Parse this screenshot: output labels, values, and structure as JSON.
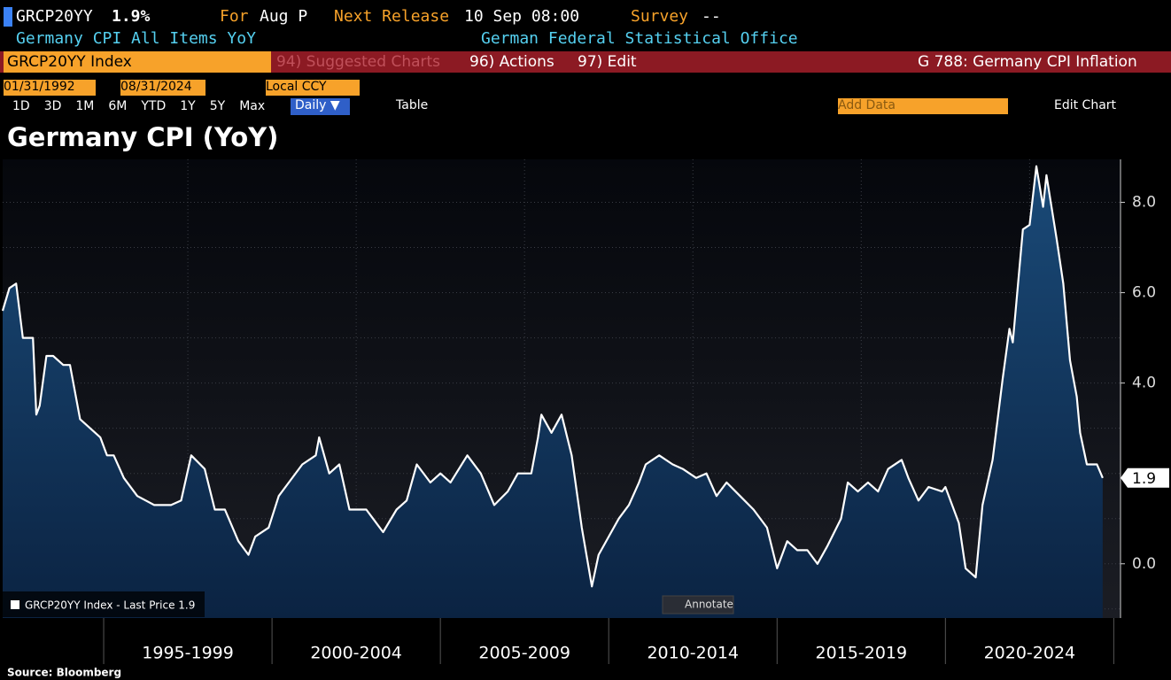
{
  "header": {
    "ticker": "GRCP20YY",
    "last": "1.9%",
    "for_label": "For",
    "for_value": "Aug P",
    "release_label": "Next Release",
    "release_value": "10 Sep 08:00",
    "survey_label": "Survey",
    "survey_value": "--",
    "description": "Germany CPI All Items YoY",
    "source_org": "German Federal Statistical Office"
  },
  "toolbar": {
    "security": "GRCP20YY Index",
    "suggested": "94) Suggested Charts",
    "actions": "96) Actions",
    "edit": "97) Edit",
    "chart_id": "G 788: Germany CPI Inflation"
  },
  "controls": {
    "start_date": "01/31/1992",
    "end_date": "08/31/2024",
    "currency": "Local CCY",
    "periods": [
      "1D",
      "3D",
      "1M",
      "6M",
      "YTD",
      "1Y",
      "5Y",
      "Max"
    ],
    "frequency": "Daily ▼",
    "table": "Table",
    "add_data": "Add Data",
    "edit_chart": "Edit Chart"
  },
  "chart_data": {
    "type": "line",
    "title": "Germany CPI (YoY)",
    "annotate": "Annotate",
    "source": "Source: Bloomberg",
    "last_price": 1.9,
    "x": [
      1992.0,
      1992.2,
      1992.4,
      1992.6,
      1992.9,
      1993.0,
      1993.1,
      1993.3,
      1993.5,
      1993.8,
      1994.0,
      1994.3,
      1994.6,
      1994.9,
      1995.1,
      1995.3,
      1995.6,
      1996.0,
      1996.5,
      1997.0,
      1997.3,
      1997.6,
      1998.0,
      1998.3,
      1998.6,
      1999.0,
      1999.3,
      1999.5,
      1999.9,
      2000.2,
      2000.5,
      2000.9,
      2001.3,
      2001.4,
      2001.7,
      2002.0,
      2002.3,
      2002.8,
      2003.0,
      2003.3,
      2003.7,
      2004.0,
      2004.3,
      2004.7,
      2005.0,
      2005.3,
      2005.8,
      2006.2,
      2006.6,
      2007.0,
      2007.3,
      2007.7,
      2007.9,
      2008.0,
      2008.3,
      2008.6,
      2008.9,
      2009.2,
      2009.5,
      2009.7,
      2010.0,
      2010.3,
      2010.6,
      2010.9,
      2011.1,
      2011.5,
      2011.9,
      2012.2,
      2012.6,
      2012.9,
      2013.2,
      2013.5,
      2013.9,
      2014.3,
      2014.7,
      2015.0,
      2015.3,
      2015.6,
      2015.9,
      2016.2,
      2016.5,
      2016.9,
      2017.1,
      2017.4,
      2017.7,
      2018.0,
      2018.3,
      2018.7,
      2018.9,
      2019.2,
      2019.5,
      2019.9,
      2020.0,
      2020.2,
      2020.4,
      2020.6,
      2020.9,
      2021.1,
      2021.4,
      2021.7,
      2021.9,
      2022.0,
      2022.3,
      2022.5,
      2022.7,
      2022.9,
      2023.0,
      2023.3,
      2023.5,
      2023.7,
      2023.9,
      2024.0,
      2024.2,
      2024.5,
      2024.67
    ],
    "series": [
      {
        "name": "GRCP20YY Index - Last Price 1.9",
        "color": "#ffffff",
        "values": [
          5.6,
          6.1,
          6.2,
          5.0,
          5.0,
          3.3,
          3.5,
          4.6,
          4.6,
          4.4,
          4.4,
          3.2,
          3.0,
          2.8,
          2.4,
          2.4,
          1.9,
          1.5,
          1.3,
          1.3,
          1.4,
          2.4,
          2.1,
          1.2,
          1.2,
          0.5,
          0.2,
          0.6,
          0.8,
          1.5,
          1.8,
          2.2,
          2.4,
          2.8,
          2.0,
          2.2,
          1.2,
          1.2,
          1.0,
          0.7,
          1.2,
          1.4,
          2.2,
          1.8,
          2.0,
          1.8,
          2.4,
          2.0,
          1.3,
          1.6,
          2.0,
          2.0,
          2.8,
          3.3,
          2.9,
          3.3,
          2.4,
          0.8,
          -0.5,
          0.2,
          0.6,
          1.0,
          1.3,
          1.8,
          2.2,
          2.4,
          2.2,
          2.1,
          1.9,
          2.0,
          1.5,
          1.8,
          1.5,
          1.2,
          0.8,
          -0.1,
          0.5,
          0.3,
          0.3,
          0.0,
          0.4,
          1.0,
          1.8,
          1.6,
          1.8,
          1.6,
          2.1,
          2.3,
          1.9,
          1.4,
          1.7,
          1.6,
          1.7,
          1.3,
          0.9,
          -0.1,
          -0.3,
          1.3,
          2.3,
          4.1,
          5.2,
          4.9,
          7.4,
          7.5,
          8.8,
          7.9,
          8.6,
          7.2,
          6.2,
          4.5,
          3.7,
          2.9,
          2.2,
          2.2,
          1.9
        ]
      }
    ],
    "xlim": [
      1992,
      2025.2
    ],
    "xticks": [
      {
        "value": 1997.5,
        "label": "1995-1999"
      },
      {
        "value": 2002.5,
        "label": "2000-2004"
      },
      {
        "value": 2007.5,
        "label": "2005-2009"
      },
      {
        "value": 2012.5,
        "label": "2010-2014"
      },
      {
        "value": 2017.5,
        "label": "2015-2019"
      },
      {
        "value": 2022.5,
        "label": "2020-2024"
      }
    ],
    "ylim": [
      -1.2,
      8.95
    ],
    "yticks": [
      {
        "value": 0,
        "label": "0.0"
      },
      {
        "value": 4,
        "label": "4.0"
      },
      {
        "value": 6,
        "label": "6.0"
      },
      {
        "value": 8,
        "label": "8.0"
      }
    ],
    "minor_yticks": [
      -1,
      1,
      2,
      3,
      5,
      7
    ],
    "grid": true
  }
}
